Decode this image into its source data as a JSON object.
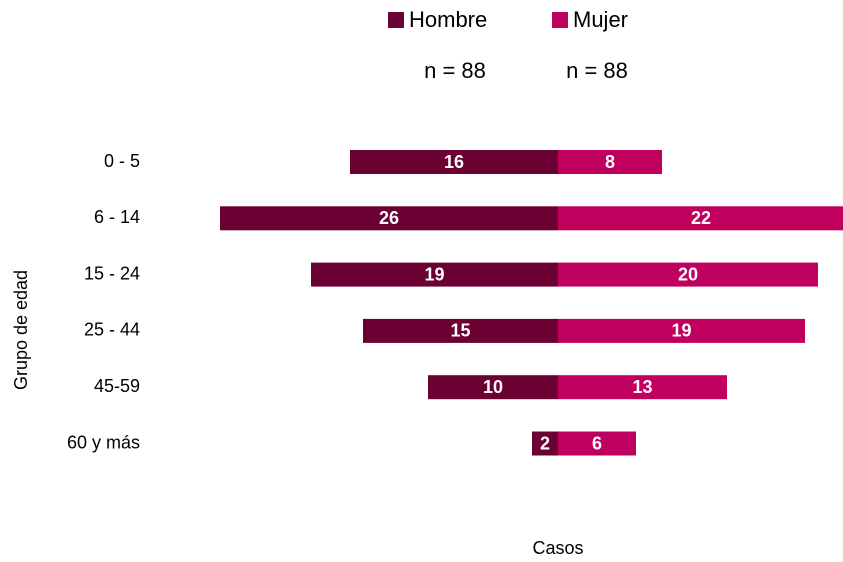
{
  "chart_data": {
    "type": "pyramid",
    "categories": [
      "0 - 5",
      "6 - 14",
      "15 - 24",
      "25 - 44",
      "45-59",
      "60 y más"
    ],
    "series": [
      {
        "name": "Hombre",
        "color": "#6b0033",
        "values": [
          16,
          26,
          19,
          15,
          10,
          2
        ]
      },
      {
        "name": "Mujer",
        "color": "#c0005f",
        "values": [
          8,
          22,
          20,
          19,
          13,
          6
        ]
      }
    ],
    "annotations": [
      "n = 88",
      "n = 88"
    ],
    "ylabel": "Grupo de edad",
    "xlabel": "Casos"
  }
}
